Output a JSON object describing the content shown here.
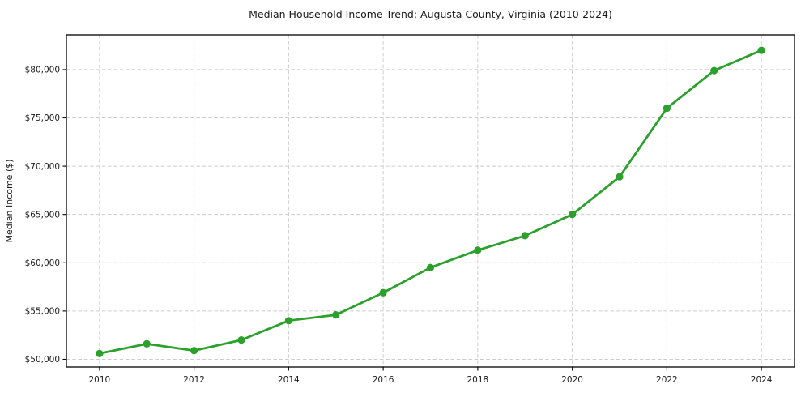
{
  "figure": {
    "background": "#ffffff"
  },
  "chart_data": {
    "type": "line",
    "title": "Median Household Income Trend: Augusta County, Virginia (2010-2024)",
    "xlabel": "",
    "ylabel": "Median Income ($)",
    "x": [
      2010,
      2011,
      2012,
      2013,
      2014,
      2015,
      2016,
      2017,
      2018,
      2019,
      2020,
      2021,
      2022,
      2023,
      2024
    ],
    "series": [
      {
        "name": "Median household income",
        "values": [
          50600,
          51600,
          50900,
          52000,
          54000,
          54600,
          56900,
          59500,
          61300,
          62800,
          65000,
          68900,
          76000,
          79900,
          82000
        ],
        "color": "#2ca02c",
        "marker": "circle",
        "line_width": 2.8,
        "marker_radius": 4.6
      }
    ],
    "xlim": [
      2009.3,
      2024.7
    ],
    "ylim": [
      49200,
      83600
    ],
    "xticks": [
      2010,
      2012,
      2014,
      2016,
      2018,
      2020,
      2022,
      2024
    ],
    "xtick_labels": [
      "2010",
      "2012",
      "2014",
      "2016",
      "2018",
      "2020",
      "2022",
      "2024"
    ],
    "yticks": [
      50000,
      55000,
      60000,
      65000,
      70000,
      75000,
      80000
    ],
    "ytick_labels": [
      "$50,000",
      "$55,000",
      "$60,000",
      "$65,000",
      "$70,000",
      "$75,000",
      "$80,000"
    ],
    "grid": true,
    "grid_style": "dashed",
    "legend": "none",
    "colors": {
      "line": "#2ca02c",
      "grid": "#cccccc",
      "spine": "#000000",
      "text": "#1a1a1a",
      "background": "#ffffff"
    }
  }
}
